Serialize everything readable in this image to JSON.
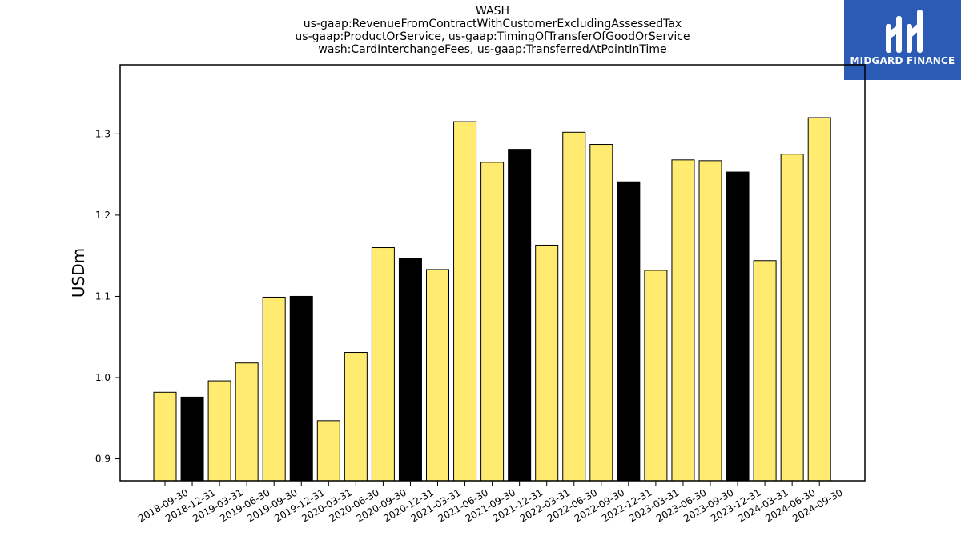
{
  "logo": {
    "text": "MIDGARD FINANCE",
    "background": "#2c5bb5"
  },
  "chart_data": {
    "type": "bar",
    "title": "WASH",
    "subtitle_lines": [
      "us-gaap:RevenueFromContractWithCustomerExcludingAssessedTax",
      "us-gaap:ProductOrService, us-gaap:TimingOfTransferOfGoodOrService",
      "wash:CardInterchangeFees, us-gaap:TransferredAtPointInTime"
    ],
    "xlabel": "",
    "ylabel": "USDm",
    "ylim": [
      0.873,
      1.385
    ],
    "yticks": [
      0.9,
      1.0,
      1.1,
      1.2,
      1.3
    ],
    "ytick_labels": [
      "0.9",
      "1.0",
      "1.1",
      "1.2",
      "1.3"
    ],
    "grid": false,
    "colors": {
      "quarter": "#ffeb70",
      "year_end": "#000000",
      "edge": "#000000"
    },
    "categories": [
      "2018-09-30",
      "2018-12-31",
      "2019-03-31",
      "2019-06-30",
      "2019-09-30",
      "2019-12-31",
      "2020-03-31",
      "2020-06-30",
      "2020-09-30",
      "2020-12-31",
      "2021-03-31",
      "2021-06-30",
      "2021-09-30",
      "2021-12-31",
      "2022-03-31",
      "2022-06-30",
      "2022-09-30",
      "2022-12-31",
      "2023-03-31",
      "2023-06-30",
      "2023-09-30",
      "2023-12-31",
      "2024-03-31",
      "2024-06-30",
      "2024-09-30"
    ],
    "values": [
      0.982,
      0.976,
      0.996,
      1.018,
      1.099,
      1.1,
      0.947,
      1.031,
      1.16,
      1.147,
      1.133,
      1.315,
      1.265,
      1.281,
      1.163,
      1.302,
      1.287,
      1.241,
      1.132,
      1.268,
      1.267,
      1.253,
      1.144,
      1.275,
      1.32
    ],
    "bar_kinds": [
      "quarter",
      "year_end",
      "quarter",
      "quarter",
      "quarter",
      "year_end",
      "quarter",
      "quarter",
      "quarter",
      "year_end",
      "quarter",
      "quarter",
      "quarter",
      "year_end",
      "quarter",
      "quarter",
      "quarter",
      "year_end",
      "quarter",
      "quarter",
      "quarter",
      "year_end",
      "quarter",
      "quarter",
      "quarter"
    ]
  }
}
